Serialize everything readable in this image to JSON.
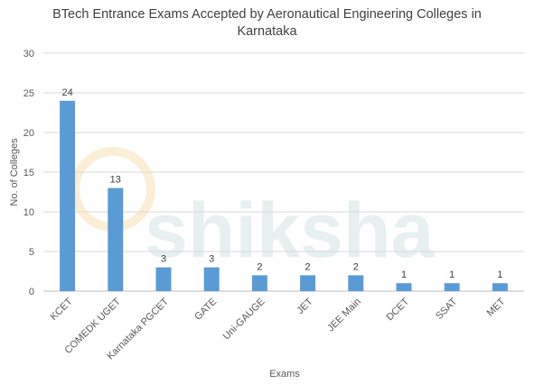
{
  "chart_data": {
    "type": "bar",
    "title_line1": "BTech Entrance Exams Accepted by Aeronautical Engineering Colleges in",
    "title_line2": "Karnataka",
    "xlabel": "Exams",
    "ylabel": "No. of Colleges",
    "categories": [
      "KCET",
      "COMEDK UGET",
      "Karnataka PGCET",
      "GATE",
      "Uni-GAUGE",
      "JET",
      "JEE Main",
      "DCET",
      "SSAT",
      "MET"
    ],
    "values": [
      24,
      13,
      3,
      3,
      2,
      2,
      2,
      1,
      1,
      1
    ],
    "ylim": [
      0,
      30
    ],
    "yticks": [
      0,
      5,
      10,
      15,
      20,
      25,
      30
    ],
    "bar_color": "#5b9bd5",
    "grid": true,
    "legend": "none",
    "watermark": "shiksha"
  }
}
